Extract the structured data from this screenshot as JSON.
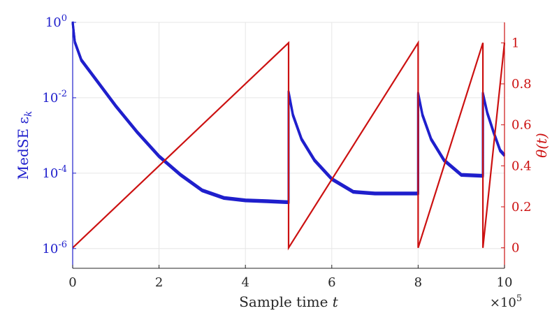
{
  "chart_data": {
    "type": "line",
    "xlabel": "Sample time t",
    "x_multiplier_label": "×10^5",
    "xlim": [
      0,
      10
    ],
    "x_ticks": [
      "0",
      "2",
      "4",
      "6",
      "8",
      "10"
    ],
    "x_tick_values": [
      0,
      2,
      4,
      6,
      8,
      10
    ],
    "left_axis": {
      "label": "MedSE ε_k",
      "scale": "log",
      "color": "#1f1fcc",
      "ylim": [
        3e-07,
        1
      ],
      "ticks": [
        "10^0",
        "10^-2",
        "10^-4",
        "10^-6"
      ],
      "tick_values": [
        1,
        0.01,
        0.0001,
        1e-06
      ]
    },
    "right_axis": {
      "label": "θ(t)",
      "scale": "linear",
      "color": "#cc1111",
      "ylim": [
        -0.1,
        1.1
      ],
      "ticks": [
        "0",
        "0.2",
        "0.4",
        "0.6",
        "0.8",
        "1"
      ],
      "tick_values": [
        0,
        0.2,
        0.4,
        0.6,
        0.8,
        1
      ]
    },
    "grid": true,
    "series": [
      {
        "axis": "left",
        "color": "#1f1fcc",
        "x": [
          0,
          0.05,
          0.2,
          0.5,
          1.0,
          1.5,
          2.0,
          2.5,
          3.0,
          3.5,
          4.0,
          4.5,
          5.0,
          5.0,
          5.1,
          5.3,
          5.6,
          6.0,
          6.5,
          7.0,
          7.5,
          8.0,
          8.0,
          8.1,
          8.3,
          8.6,
          9.0,
          9.5,
          9.5,
          9.6,
          9.75,
          9.9,
          10.0
        ],
        "y": [
          1.0,
          0.3,
          0.1,
          0.035,
          0.006,
          0.0012,
          0.00028,
          9e-05,
          3.5e-05,
          2.2e-05,
          1.9e-05,
          1.8e-05,
          1.7e-05,
          0.014,
          0.0035,
          0.0008,
          0.00022,
          7e-05,
          3.2e-05,
          2.9e-05,
          2.9e-05,
          2.9e-05,
          0.013,
          0.0035,
          0.0008,
          0.00022,
          9e-05,
          8.5e-05,
          0.013,
          0.004,
          0.0012,
          0.0004,
          0.0003
        ]
      },
      {
        "axis": "right",
        "color": "#cc1111",
        "x": [
          0,
          5.0,
          5.0,
          8.0,
          8.0,
          9.5,
          9.5,
          10.0
        ],
        "y": [
          0,
          1,
          0,
          1,
          0,
          1,
          0,
          1
        ]
      }
    ]
  }
}
